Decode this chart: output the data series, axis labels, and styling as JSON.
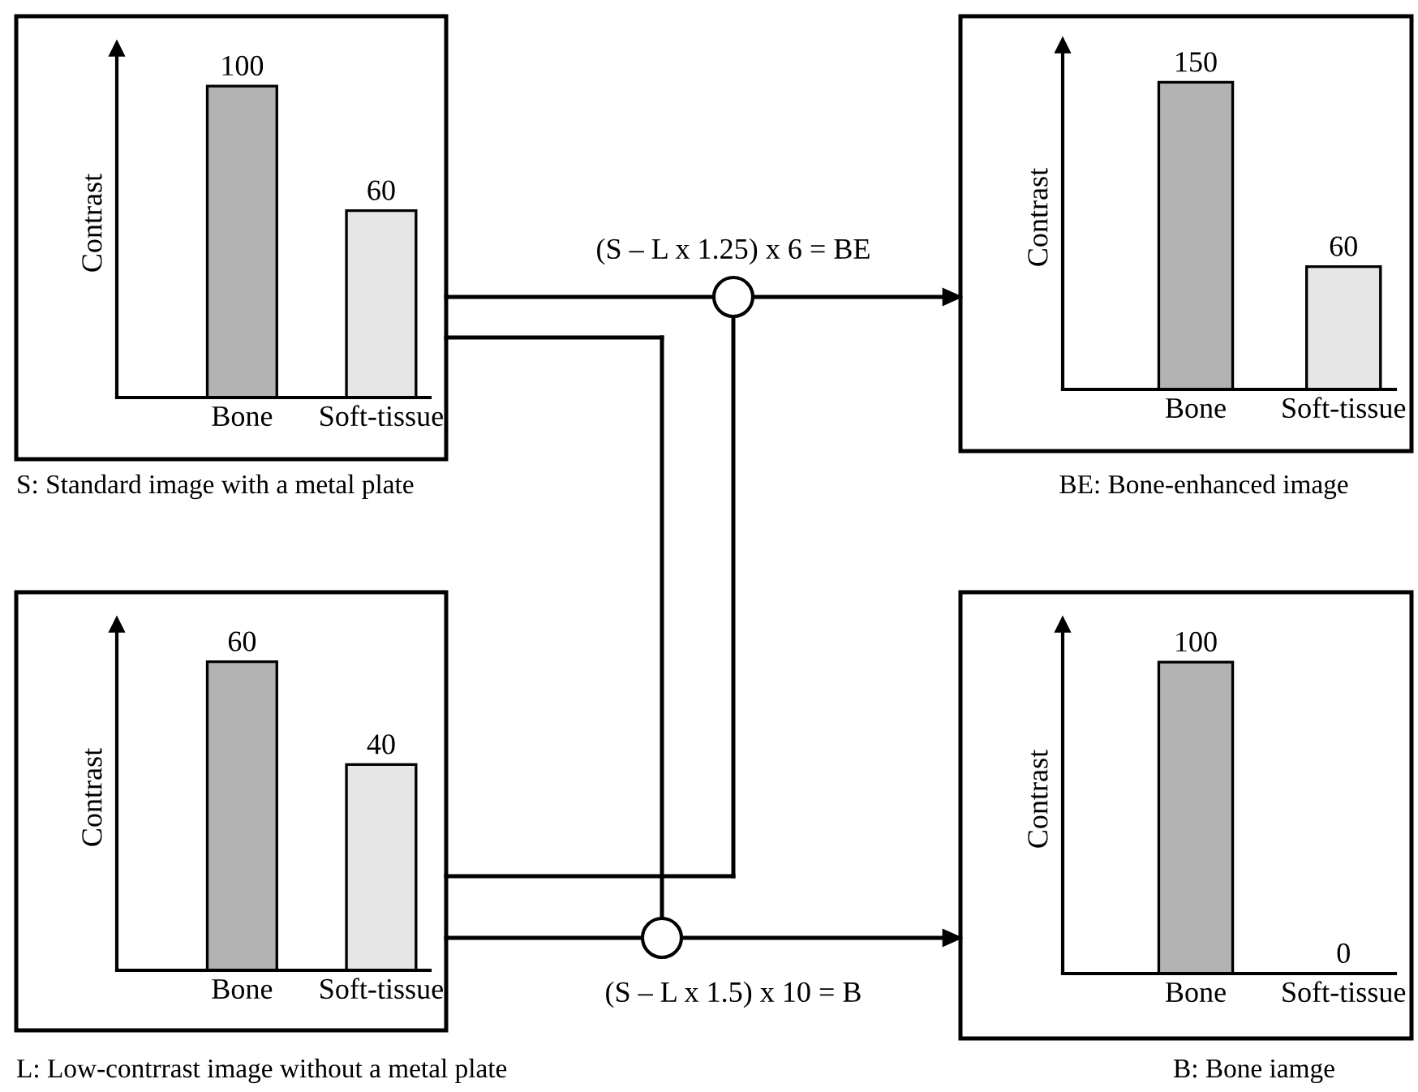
{
  "chart_data": [
    {
      "type": "bar",
      "ylabel": "Contrast",
      "categories": [
        "Bone",
        "Soft-tissue"
      ],
      "values": [
        100,
        60
      ],
      "colors": [
        "#b3b3b3",
        "#e6e6e6"
      ],
      "data_labels": true,
      "annotations": [
        "S: Standard image with a metal plate"
      ]
    },
    {
      "type": "bar",
      "ylabel": "Contrast",
      "categories": [
        "Bone",
        "Soft-tissue"
      ],
      "values": [
        150,
        60
      ],
      "colors": [
        "#b3b3b3",
        "#e6e6e6"
      ],
      "data_labels": true,
      "annotations": [
        "BE: Bone-enhanced image",
        "(S – L x 1.25) x 6 = BE"
      ]
    },
    {
      "type": "bar",
      "ylabel": "Contrast",
      "categories": [
        "Bone",
        "Soft-tissue"
      ],
      "values": [
        60,
        40
      ],
      "colors": [
        "#b3b3b3",
        "#e6e6e6"
      ],
      "data_labels": true,
      "annotations": [
        "L: Low-contrrast image without a metal plate"
      ]
    },
    {
      "type": "bar",
      "ylabel": "Contrast",
      "categories": [
        "Bone",
        "Soft-tissue"
      ],
      "values": [
        100,
        0
      ],
      "colors": [
        "#b3b3b3",
        "#e6e6e6"
      ],
      "data_labels": true,
      "annotations": [
        "B: Bone iamge",
        "(S – L x 1.5) x 10 = B"
      ]
    }
  ]
}
